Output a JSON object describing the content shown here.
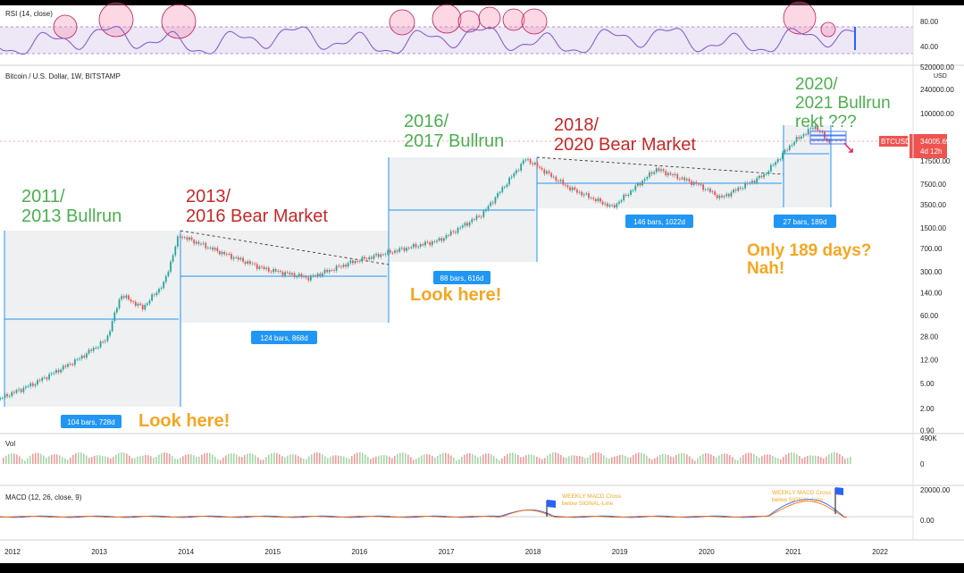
{
  "panels": {
    "rsi_label": "RSI (14, close)",
    "main_label": "Bitcoin / U.S. Dollar, 1W, BITSTAMP",
    "vol_label": "Vol",
    "macd_label": "MACD (12, 26, close, 9)"
  },
  "price_scale": {
    "currency": "USD",
    "ticks": [
      "520000.00",
      "240000.00",
      "100000.00",
      "17500.00",
      "7500.00",
      "3500.00",
      "1500.00",
      "700.00",
      "300.00",
      "140.00",
      "60.00",
      "28.00",
      "12.00",
      "5.00",
      "2.00",
      "0.90"
    ],
    "symbol_tag": "BTCUSD",
    "last_price": "34005.69",
    "countdown": "4d 12h",
    "tag_color": "#ef5350"
  },
  "rsi_scale": {
    "ticks": [
      "80.00",
      "40.00"
    ]
  },
  "vol_scale": {
    "ticks": [
      "490K",
      "0"
    ]
  },
  "macd_scale": {
    "ticks": [
      "20000.00",
      "0.00"
    ]
  },
  "time_axis": [
    "2012",
    "2013",
    "2014",
    "2015",
    "2016",
    "2017",
    "2018",
    "2019",
    "2020",
    "2021",
    "2022"
  ],
  "annotations": {
    "bull_2011": [
      "2011/",
      "2013 Bullrun"
    ],
    "bear_2013": [
      "2013/",
      "2016 Bear Market"
    ],
    "bull_2016": [
      "2016/",
      "2017 Bullrun"
    ],
    "bear_2018": [
      "2018/",
      "2020 Bear Market"
    ],
    "bull_2020": [
      "2020/",
      "2021 Bullrun",
      "rekt ???"
    ],
    "look_here_1": "Look here!",
    "look_here_2": "Look here!",
    "only_189": [
      "Only 189 days?",
      "Nah!"
    ],
    "macd_note": [
      "WEEKLY MACD Cross",
      "below SIGNAL-Line"
    ]
  },
  "colors": {
    "bull_text": "#4caf50",
    "bear_text": "#c62828",
    "note_text": "#f5a623",
    "up_candle": "#26a69a",
    "down_candle": "#ef5350",
    "measure_blue": "#2196f3",
    "rsi_line": "#7e57c2"
  },
  "chart_data": {
    "type": "line",
    "title": "Bitcoin / U.S. Dollar, 1W, BITSTAMP",
    "yscale": "log",
    "ylabel": "USD",
    "x_range": [
      "2012",
      "2022"
    ],
    "ylim": [
      0.9,
      520000
    ],
    "series": [
      {
        "name": "BTCUSD",
        "x": [
          "2011-10",
          "2012-04",
          "2012-10",
          "2013-02",
          "2013-04",
          "2013-07",
          "2013-10",
          "2013-12",
          "2014-06",
          "2014-12",
          "2015-06",
          "2015-12",
          "2016-06",
          "2016-12",
          "2017-06",
          "2017-12",
          "2018-06",
          "2018-12",
          "2019-06",
          "2019-12",
          "2020-03",
          "2020-09",
          "2021-01",
          "2021-04",
          "2021-06"
        ],
        "values": [
          2.5,
          5,
          12,
          25,
          130,
          80,
          200,
          1150,
          600,
          330,
          240,
          430,
          650,
          950,
          2500,
          19000,
          6500,
          3200,
          13000,
          7200,
          4500,
          10500,
          35000,
          63000,
          34005.69
        ]
      }
    ],
    "ranges": [
      {
        "label": "104 bars, 728d",
        "start": "2011-11",
        "end": "2013-11"
      },
      {
        "label": "124 bars, 868d",
        "start": "2013-12",
        "end": "2016-04"
      },
      {
        "label": "88 bars, 616d",
        "start": "2016-04",
        "end": "2017-12"
      },
      {
        "label": "146 bars, 1022d",
        "start": "2017-12",
        "end": "2020-10"
      },
      {
        "label": "27 bars, 189d",
        "start": "2020-12",
        "end": "2021-06"
      }
    ],
    "rsi": {
      "name": "RSI (14, close)",
      "levels": [
        80,
        40
      ]
    },
    "macd": {
      "name": "MACD (12, 26, close, 9)",
      "ticks": [
        20000,
        0
      ]
    },
    "volume": {
      "name": "Vol",
      "ticks": [
        "490K",
        "0"
      ]
    }
  }
}
